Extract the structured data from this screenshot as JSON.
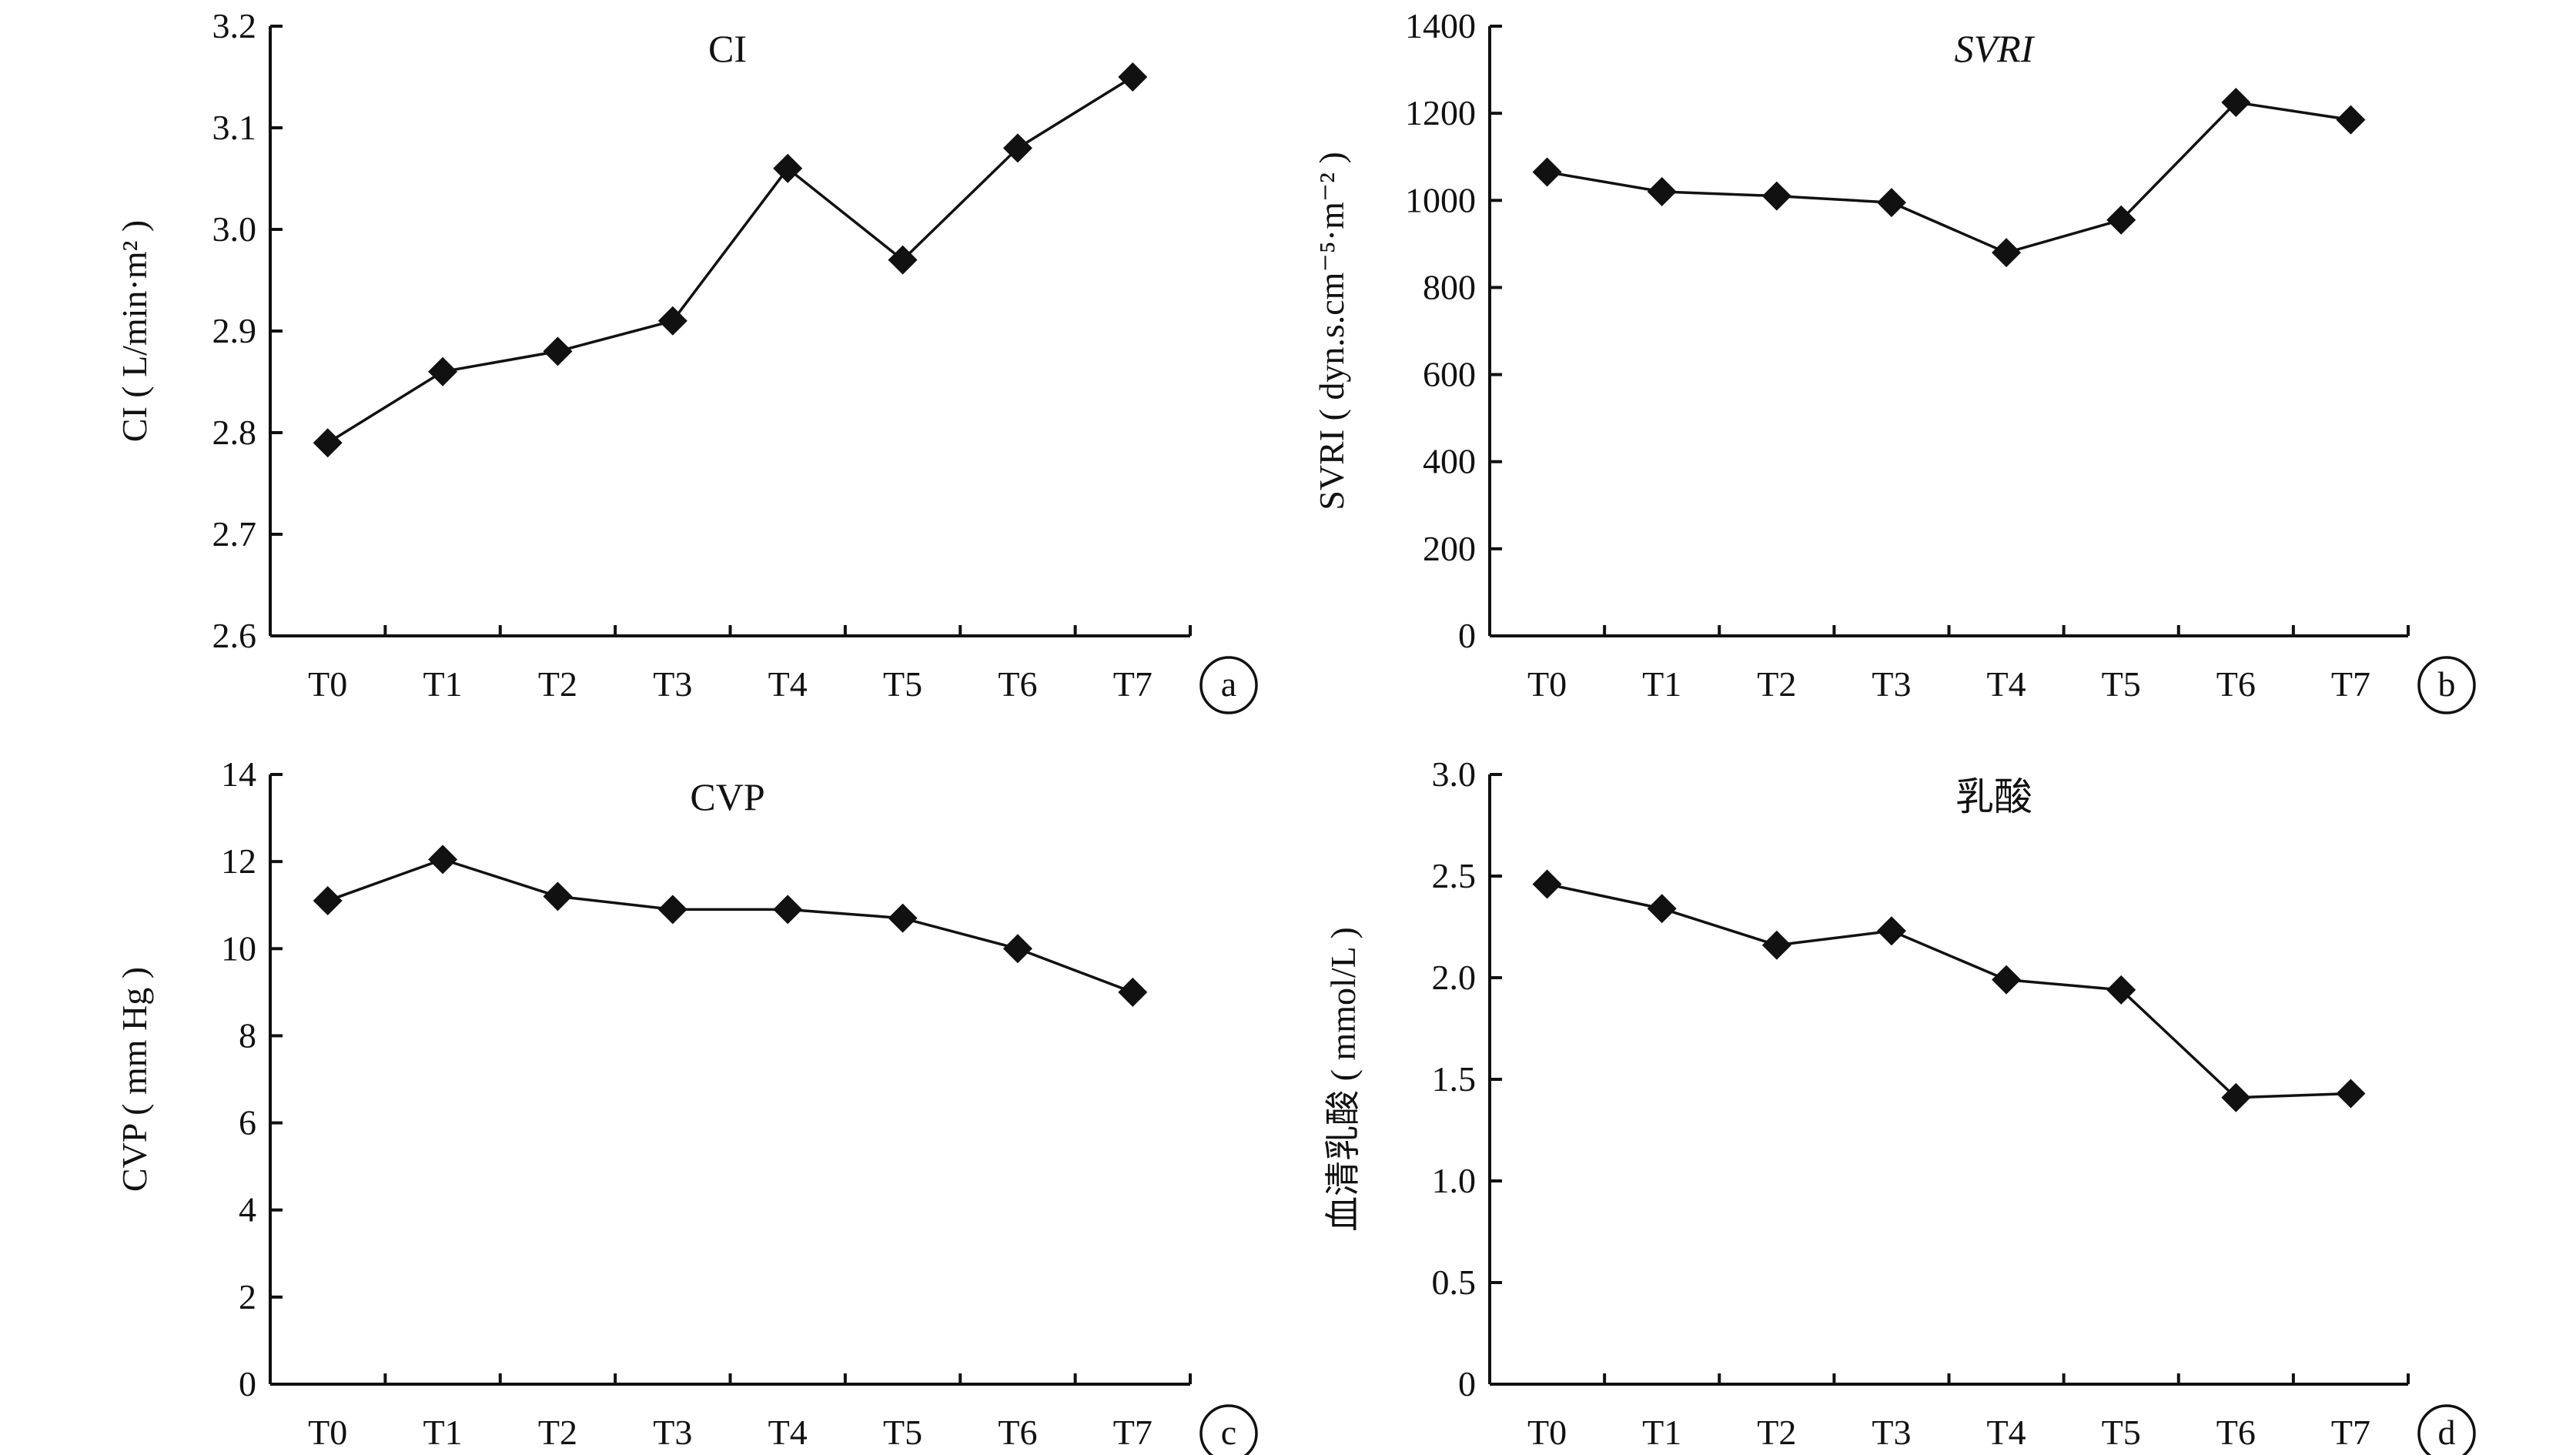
{
  "chart_data": [
    {
      "panel": "a",
      "type": "line",
      "title": "CI",
      "title_italic": false,
      "ylabel": "CI ( L/min·m² )",
      "xlabel": "",
      "categories": [
        "T0",
        "T1",
        "T2",
        "T3",
        "T4",
        "T5",
        "T6",
        "T7"
      ],
      "values": [
        2.79,
        2.86,
        2.88,
        2.91,
        3.06,
        2.97,
        3.08,
        3.15
      ],
      "yticks": [
        "2.6",
        "2.7",
        "2.8",
        "2.9",
        "3.0",
        "3.1",
        "3.2"
      ],
      "ylim": [
        2.6,
        3.2
      ],
      "marker": "diamond",
      "grid": false
    },
    {
      "panel": "b",
      "type": "line",
      "title": "SVRI",
      "title_italic": true,
      "ylabel": "SVRI ( dyn.s.cm⁻⁵·m⁻² )",
      "xlabel": "",
      "categories": [
        "T0",
        "T1",
        "T2",
        "T3",
        "T4",
        "T5",
        "T6",
        "T7"
      ],
      "values": [
        1065,
        1020,
        1010,
        995,
        880,
        955,
        1225,
        1185
      ],
      "yticks": [
        "0",
        "200",
        "400",
        "600",
        "800",
        "1000",
        "1200",
        "1400"
      ],
      "ylim": [
        0,
        1400
      ],
      "marker": "diamond",
      "grid": false
    },
    {
      "panel": "c",
      "type": "line",
      "title": "CVP",
      "title_italic": false,
      "ylabel": "CVP ( mm Hg )",
      "xlabel": "",
      "categories": [
        "T0",
        "T1",
        "T2",
        "T3",
        "T4",
        "T5",
        "T6",
        "T7"
      ],
      "values": [
        11.1,
        12.05,
        11.2,
        10.9,
        10.9,
        10.7,
        10.0,
        9.0
      ],
      "yticks": [
        "0",
        "2",
        "4",
        "6",
        "8",
        "10",
        "12",
        "14"
      ],
      "ylim": [
        0,
        14
      ],
      "marker": "diamond",
      "grid": false
    },
    {
      "panel": "d",
      "type": "line",
      "title": "乳酸",
      "title_italic": false,
      "ylabel": "血清乳酸 ( mmol/L )",
      "xlabel": "",
      "categories": [
        "T0",
        "T1",
        "T2",
        "T3",
        "T4",
        "T5",
        "T6",
        "T7"
      ],
      "values": [
        2.46,
        2.34,
        2.16,
        2.23,
        1.99,
        1.94,
        1.41,
        1.43
      ],
      "yticks": [
        "0",
        "0.5",
        "1.0",
        "1.5",
        "2.0",
        "2.5",
        "3.0"
      ],
      "ylim": [
        0,
        3.0
      ],
      "marker": "diamond",
      "grid": false
    }
  ]
}
